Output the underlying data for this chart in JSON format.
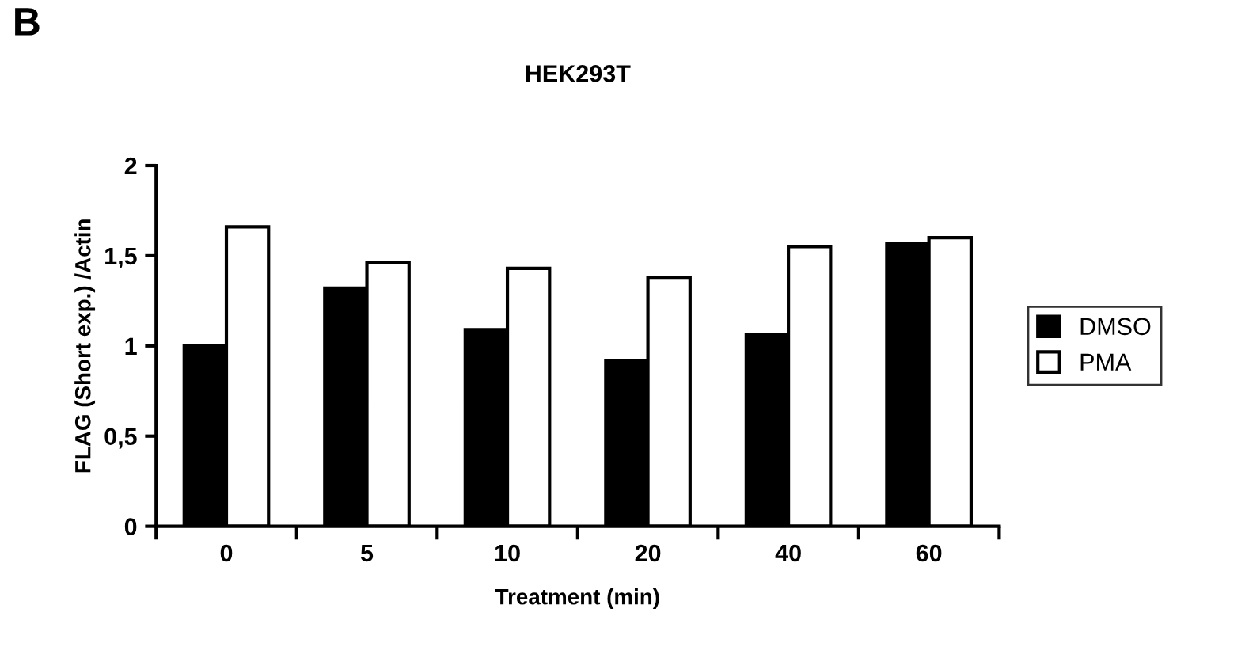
{
  "chart_data": {
    "type": "bar",
    "title": "HEK293T",
    "xlabel": "Treatment (min)",
    "ylabel": "FLAG (Short exp.) /Actin",
    "annotations": [
      "B"
    ],
    "categories": [
      "0",
      "5",
      "10",
      "20",
      "40",
      "60"
    ],
    "series": [
      {
        "name": "DMSO",
        "color": "#000000",
        "values": [
          1.0,
          1.32,
          1.09,
          0.92,
          1.06,
          1.57
        ]
      },
      {
        "name": "PMA",
        "color": "#ffffff",
        "values": [
          1.66,
          1.46,
          1.43,
          1.38,
          1.55,
          1.6
        ]
      }
    ],
    "ylim": [
      0,
      2
    ],
    "yticks": [
      0,
      {
        "value": 0.5,
        "label": "0,5"
      },
      1,
      {
        "value": 1.5,
        "label": "1,5"
      },
      2
    ],
    "grid": false,
    "legend": "right"
  }
}
